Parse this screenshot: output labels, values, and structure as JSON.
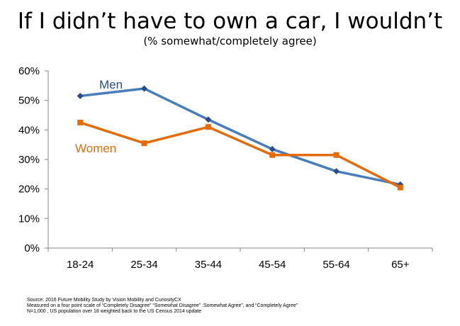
{
  "chart_data": {
    "type": "line",
    "title": "If I didn’t have to own a car, I wouldn’t",
    "subtitle": "(% somewhat/completely agree)",
    "xlabel": "",
    "ylabel": "",
    "categories": [
      "18-24",
      "25-34",
      "35-44",
      "45-54",
      "55-64",
      "65+"
    ],
    "ylim": [
      0,
      60
    ],
    "yticks": [
      0,
      10,
      20,
      30,
      40,
      50,
      60
    ],
    "ytick_labels": [
      "0%",
      "10%",
      "20%",
      "30%",
      "40%",
      "50%",
      "60%"
    ],
    "grid": false,
    "legend": "inline labels",
    "series": [
      {
        "name": "Men",
        "color": "#4a7ebb",
        "label_color": "#2c4c8a",
        "marker": "diamond",
        "values": [
          51.5,
          54,
          43.5,
          33.5,
          26,
          21.5
        ]
      },
      {
        "name": "Women",
        "color": "#e46c0a",
        "label_color": "#e46c0a",
        "marker": "square",
        "values": [
          42.5,
          35.5,
          41,
          31.5,
          31.5,
          20.5
        ]
      }
    ]
  },
  "source": {
    "line1": "Source: 2016  Future Mobility Study by Vision Mobility and CuriosityCX",
    "line2": "Measured on a four point scale of “Completely Disagree” “Somewhat Disagree” :Somewhat Agree”, and “Completely Agree”",
    "line3": "N=1,000 , US population over 18 weighted back to the US Census 2014 update"
  }
}
